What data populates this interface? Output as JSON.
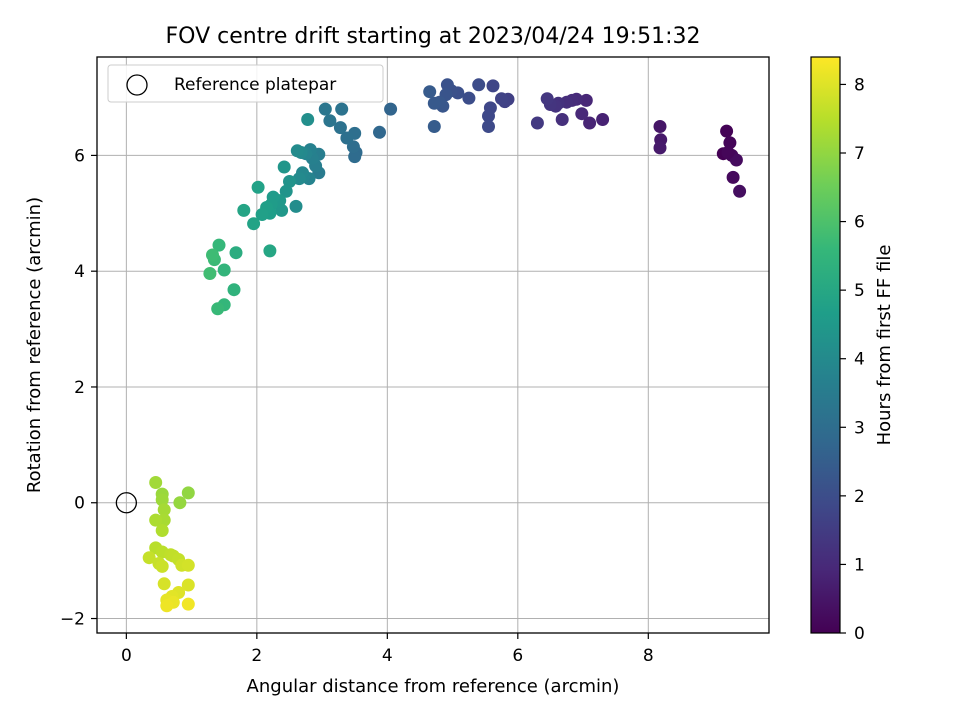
{
  "chart_data": {
    "type": "scatter",
    "title": "FOV centre drift starting at 2023/04/24 19:51:32",
    "xlabel": "Angular distance from reference (arcmin)",
    "ylabel": "Rotation from reference (arcmin)",
    "xlim": [
      -0.45,
      9.85
    ],
    "ylim": [
      -2.25,
      7.7
    ],
    "xticks": [
      0,
      2,
      4,
      6,
      8
    ],
    "yticks": [
      -2,
      0,
      2,
      4,
      6
    ],
    "grid": true,
    "legend": {
      "placement": "upper left",
      "entries": [
        "Reference platepar"
      ]
    },
    "colorbar": {
      "label": "Hours from first FF file",
      "range": [
        0,
        8.4
      ],
      "ticks": [
        0,
        1,
        2,
        3,
        4,
        5,
        6,
        7,
        8
      ],
      "colormap": "viridis"
    },
    "colormap_stops": [
      "#440154",
      "#482878",
      "#3e4989",
      "#31688e",
      "#26828e",
      "#1f9e89",
      "#35b779",
      "#6ece58",
      "#b5de2b",
      "#fde725"
    ],
    "reference_point": {
      "x": 0,
      "y": 0,
      "name": "Reference platepar"
    },
    "points": [
      [
        9.15,
        6.03,
        0.0
      ],
      [
        9.2,
        6.42,
        0.05
      ],
      [
        9.25,
        6.22,
        0.1
      ],
      [
        9.28,
        6.0,
        0.15
      ],
      [
        9.3,
        5.62,
        0.2
      ],
      [
        9.35,
        5.92,
        0.25
      ],
      [
        9.4,
        5.38,
        0.3
      ],
      [
        9.22,
        6.05,
        0.12
      ],
      [
        8.18,
        6.5,
        0.5
      ],
      [
        8.19,
        6.27,
        0.55
      ],
      [
        8.18,
        6.13,
        0.6
      ],
      [
        7.3,
        6.62,
        0.8
      ],
      [
        7.1,
        6.56,
        0.85
      ],
      [
        7.05,
        6.95,
        0.9
      ],
      [
        6.98,
        6.72,
        0.95
      ],
      [
        6.9,
        6.97,
        1.0
      ],
      [
        6.83,
        6.95,
        1.05
      ],
      [
        6.75,
        6.92,
        1.1
      ],
      [
        6.68,
        6.62,
        1.15
      ],
      [
        6.62,
        6.9,
        1.2
      ],
      [
        6.58,
        6.85,
        1.25
      ],
      [
        6.5,
        6.88,
        1.3
      ],
      [
        6.45,
        6.98,
        1.35
      ],
      [
        6.3,
        6.56,
        1.4
      ],
      [
        5.85,
        6.97,
        1.6
      ],
      [
        5.8,
        6.93,
        1.65
      ],
      [
        5.75,
        6.98,
        1.7
      ],
      [
        5.62,
        7.2,
        1.75
      ],
      [
        5.58,
        6.82,
        1.8
      ],
      [
        5.55,
        6.68,
        1.85
      ],
      [
        5.55,
        6.5,
        1.9
      ],
      [
        5.4,
        7.22,
        1.95
      ],
      [
        5.25,
        6.99,
        2.0
      ],
      [
        5.08,
        7.08,
        2.05
      ],
      [
        4.98,
        7.12,
        2.1
      ],
      [
        4.92,
        7.22,
        2.15
      ],
      [
        4.9,
        7.05,
        2.2
      ],
      [
        4.85,
        6.85,
        2.25
      ],
      [
        4.8,
        6.92,
        2.3
      ],
      [
        4.72,
        6.9,
        2.35
      ],
      [
        4.65,
        7.1,
        2.4
      ],
      [
        4.72,
        6.5,
        2.45
      ],
      [
        4.05,
        6.8,
        2.7
      ],
      [
        3.88,
        6.4,
        2.8
      ],
      [
        3.52,
        6.05,
        2.9
      ],
      [
        3.5,
        5.98,
        2.95
      ],
      [
        3.48,
        6.15,
        3.0
      ],
      [
        3.5,
        6.38,
        3.05
      ],
      [
        3.38,
        6.3,
        3.1
      ],
      [
        3.28,
        6.48,
        3.15
      ],
      [
        3.3,
        6.8,
        3.2
      ],
      [
        3.12,
        6.6,
        3.25
      ],
      [
        3.05,
        6.8,
        3.3
      ],
      [
        2.95,
        5.7,
        3.5
      ],
      [
        2.95,
        6.02,
        3.55
      ],
      [
        2.9,
        5.82,
        3.6
      ],
      [
        2.85,
        5.95,
        3.65
      ],
      [
        2.82,
        6.1,
        3.7
      ],
      [
        2.8,
        5.6,
        3.75
      ],
      [
        2.75,
        6.03,
        3.8
      ],
      [
        2.72,
        5.65,
        3.85
      ],
      [
        2.7,
        5.7,
        3.9
      ],
      [
        2.68,
        6.05,
        3.95
      ],
      [
        2.65,
        5.6,
        4.0
      ],
      [
        2.62,
        6.08,
        4.05
      ],
      [
        2.6,
        5.12,
        4.1
      ],
      [
        2.78,
        6.62,
        4.15
      ],
      [
        2.5,
        5.55,
        4.3
      ],
      [
        2.45,
        5.38,
        4.35
      ],
      [
        2.42,
        5.8,
        4.4
      ],
      [
        2.38,
        5.05,
        4.45
      ],
      [
        2.35,
        5.22,
        4.5
      ],
      [
        2.25,
        5.28,
        4.55
      ],
      [
        2.22,
        5.15,
        4.6
      ],
      [
        2.2,
        5.0,
        4.65
      ],
      [
        2.15,
        5.1,
        4.7
      ],
      [
        2.08,
        4.98,
        4.75
      ],
      [
        2.02,
        5.45,
        4.8
      ],
      [
        1.95,
        4.82,
        4.85
      ],
      [
        1.8,
        5.05,
        4.9
      ],
      [
        2.2,
        4.35,
        4.95
      ],
      [
        1.68,
        4.32,
        5.2
      ],
      [
        1.65,
        3.68,
        5.4
      ],
      [
        1.5,
        4.02,
        5.5
      ],
      [
        1.5,
        3.42,
        5.55
      ],
      [
        1.42,
        4.45,
        5.6
      ],
      [
        1.4,
        3.35,
        5.65
      ],
      [
        1.35,
        4.2,
        5.7
      ],
      [
        1.32,
        4.28,
        5.75
      ],
      [
        1.28,
        3.96,
        5.8
      ],
      [
        0.95,
        0.17,
        7.0
      ],
      [
        0.82,
        0.0,
        7.05
      ],
      [
        0.55,
        0.15,
        7.1
      ],
      [
        0.55,
        0.05,
        7.15
      ],
      [
        0.45,
        0.35,
        7.2
      ],
      [
        0.58,
        -0.12,
        7.25
      ],
      [
        0.58,
        -0.3,
        7.3
      ],
      [
        0.45,
        -0.3,
        7.35
      ],
      [
        0.55,
        -0.48,
        7.4
      ],
      [
        0.45,
        -0.78,
        7.5
      ],
      [
        0.55,
        -0.85,
        7.55
      ],
      [
        0.68,
        -0.9,
        7.6
      ],
      [
        0.72,
        -0.92,
        7.62
      ],
      [
        0.8,
        -0.98,
        7.65
      ],
      [
        0.35,
        -0.95,
        7.68
      ],
      [
        0.5,
        -1.05,
        7.7
      ],
      [
        0.55,
        -1.1,
        7.75
      ],
      [
        0.85,
        -1.08,
        7.8
      ],
      [
        0.95,
        -1.08,
        7.85
      ],
      [
        0.58,
        -1.4,
        7.9
      ],
      [
        0.95,
        -1.42,
        7.95
      ],
      [
        0.8,
        -1.55,
        8.0
      ],
      [
        0.7,
        -1.62,
        8.05
      ],
      [
        0.62,
        -1.68,
        8.1
      ],
      [
        0.72,
        -1.72,
        8.15
      ],
      [
        0.62,
        -1.78,
        8.2
      ],
      [
        0.95,
        -1.75,
        8.25
      ]
    ]
  }
}
